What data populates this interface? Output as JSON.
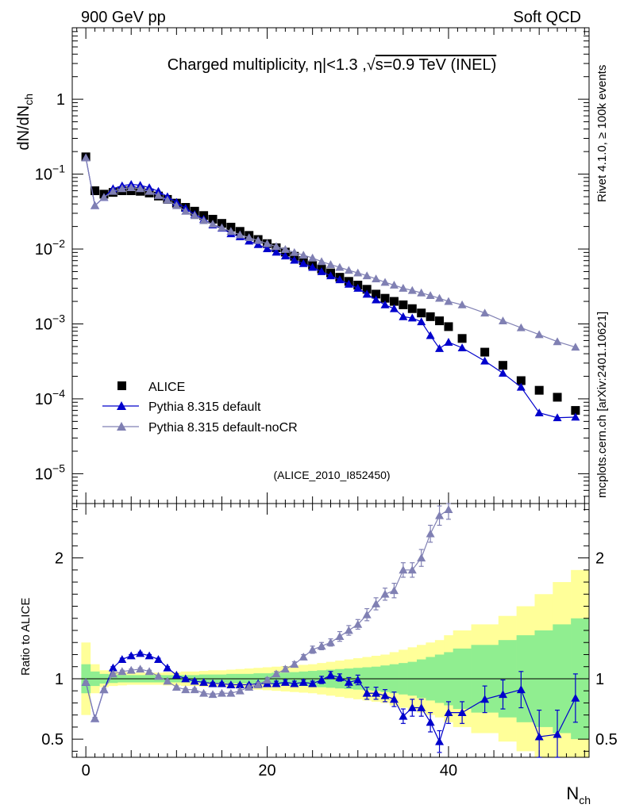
{
  "header": {
    "left": "900 GeV pp",
    "right": "Soft QCD"
  },
  "side": {
    "rivet": "Rivet 4.1.0, ≥ 100k events",
    "mcplots": "mcplots.cern.ch [arXiv:2401.10621]"
  },
  "colors": {
    "data": "#000000",
    "default": "#0000cc",
    "nocr": "#8080b3",
    "band_inner": "#90ee90",
    "band_outer": "#ffff99"
  },
  "chart_data": [
    {
      "type": "scatter",
      "panel": "main",
      "title_parts": [
        "Charged multiplicity, ",
        "η",
        "|<1.3 ,",
        "√",
        "s=0.9 TeV (INEL)"
      ],
      "ylabel_main": "dN/dN",
      "ylabel_sub": "ch",
      "yscale": "log",
      "ylim": [
        4e-06,
        9.0
      ],
      "xlim": [
        -1.5,
        55.5
      ],
      "ytick_labels": [
        {
          "value": 1,
          "mant": "1",
          "exp": ""
        },
        {
          "value": 0.1,
          "mant": "10",
          "exp": "−1"
        },
        {
          "value": 0.01,
          "mant": "10",
          "exp": "−2"
        },
        {
          "value": 0.001,
          "mant": "10",
          "exp": "−3"
        },
        {
          "value": 0.0001,
          "mant": "10",
          "exp": "−4"
        },
        {
          "value": 1e-05,
          "mant": "10",
          "exp": "−5"
        }
      ],
      "legend": [
        "ALICE",
        "Pythia 8.315 default",
        "Pythia 8.315 default-noCR"
      ],
      "analysis_label": "(ALICE_2010_I852450)",
      "series": [
        {
          "name": "ALICE",
          "style": "square",
          "x": [
            0,
            1,
            2,
            3,
            4,
            5,
            6,
            7,
            8,
            9,
            10,
            11,
            12,
            13,
            14,
            15,
            16,
            17,
            18,
            19,
            20,
            21,
            22,
            23,
            24,
            25,
            26,
            27,
            28,
            29,
            30,
            31,
            32,
            33,
            34,
            35,
            36,
            37,
            38,
            39,
            40,
            41.5,
            44,
            46,
            48,
            50,
            52,
            54
          ],
          "y": [
            0.17,
            0.06,
            0.054,
            0.057,
            0.06,
            0.06,
            0.059,
            0.056,
            0.051,
            0.046,
            0.041,
            0.036,
            0.032,
            0.028,
            0.025,
            0.022,
            0.0196,
            0.0172,
            0.0152,
            0.0134,
            0.0118,
            0.0104,
            0.0091,
            0.008,
            0.007,
            0.0061,
            0.0054,
            0.0048,
            0.0042,
            0.0037,
            0.0033,
            0.0029,
            0.0025,
            0.0022,
            0.002,
            0.0018,
            0.0016,
            0.0014,
            0.00125,
            0.0011,
            0.00092,
            0.00064,
            0.00042,
            0.00028,
            0.000175,
            0.00013,
            0.000105,
            7e-05
          ]
        },
        {
          "name": "Pythia 8.315 default",
          "style": "triangle",
          "x": [
            0,
            1,
            2,
            3,
            4,
            5,
            6,
            7,
            8,
            9,
            10,
            11,
            12,
            13,
            14,
            15,
            16,
            17,
            18,
            19,
            20,
            21,
            22,
            23,
            24,
            25,
            26,
            27,
            28,
            29,
            30,
            31,
            32,
            33,
            34,
            35,
            36,
            37,
            38,
            39,
            40,
            41.5,
            44,
            46,
            48,
            50,
            52,
            54
          ],
          "y": [
            0.165,
            0.038,
            0.049,
            0.064,
            0.07,
            0.073,
            0.071,
            0.066,
            0.059,
            0.05,
            0.042,
            0.035,
            0.029,
            0.025,
            0.021,
            0.019,
            0.016,
            0.0146,
            0.0128,
            0.0115,
            0.0101,
            0.0091,
            0.0081,
            0.0071,
            0.0064,
            0.0057,
            0.005,
            0.0044,
            0.0039,
            0.0034,
            0.003,
            0.0025,
            0.0021,
            0.0018,
            0.0016,
            0.00125,
            0.0012,
            0.00107,
            0.0007,
            0.00047,
            0.00057,
            0.00048,
            0.00032,
            0.00022,
            0.000143,
            6.5e-05,
            5.6e-05,
            5.7e-05
          ]
        },
        {
          "name": "Pythia 8.315 default-noCR",
          "style": "triangle",
          "x": [
            0,
            1,
            2,
            3,
            4,
            5,
            6,
            7,
            8,
            9,
            10,
            11,
            12,
            13,
            14,
            15,
            16,
            17,
            18,
            19,
            20,
            21,
            22,
            23,
            24,
            25,
            26,
            27,
            28,
            29,
            30,
            31,
            32,
            33,
            34,
            35,
            36,
            37,
            38,
            39,
            40,
            41.5,
            44,
            46,
            48,
            50,
            52,
            54
          ],
          "y": [
            0.165,
            0.038,
            0.049,
            0.059,
            0.064,
            0.066,
            0.064,
            0.059,
            0.052,
            0.045,
            0.038,
            0.032,
            0.028,
            0.024,
            0.0215,
            0.0192,
            0.0172,
            0.0155,
            0.0142,
            0.013,
            0.0118,
            0.0108,
            0.0099,
            0.009,
            0.0083,
            0.0076,
            0.0068,
            0.0062,
            0.0057,
            0.0052,
            0.0048,
            0.0044,
            0.004,
            0.0036,
            0.0033,
            0.003,
            0.0028,
            0.0026,
            0.0024,
            0.0022,
            0.002,
            0.0018,
            0.0014,
            0.0011,
            0.00089,
            0.00072,
            0.00058,
            0.00049
          ]
        }
      ]
    },
    {
      "type": "scatter",
      "panel": "ratio",
      "ylabel": "Ratio to ALICE",
      "xlabel_main": "N",
      "xlabel_sub": "ch",
      "ylim": [
        0.35,
        2.45
      ],
      "xlim": [
        -1.5,
        55.5
      ],
      "xticks": [
        0,
        20,
        40
      ],
      "yticks": [
        0.5,
        1,
        2
      ],
      "band": {
        "edges": [
          -0.5,
          0.5,
          1.5,
          2.5,
          3.5,
          4.5,
          5.5,
          6.5,
          7.5,
          8.5,
          9.5,
          10.5,
          11.5,
          12.5,
          13.5,
          14.5,
          15.5,
          16.5,
          17.5,
          18.5,
          19.5,
          20.5,
          21.5,
          22.5,
          23.5,
          24.5,
          25.5,
          26.5,
          27.5,
          28.5,
          29.5,
          30.5,
          31.5,
          32.5,
          33.5,
          34.5,
          35.5,
          36.5,
          37.5,
          38.5,
          39.5,
          40.5,
          42.5,
          45.5,
          47.5,
          49.5,
          51.5,
          53.5,
          55.5
        ],
        "inner": [
          0.12,
          0.06,
          0.04,
          0.035,
          0.03,
          0.03,
          0.03,
          0.03,
          0.03,
          0.03,
          0.03,
          0.03,
          0.03,
          0.035,
          0.035,
          0.035,
          0.04,
          0.04,
          0.04,
          0.045,
          0.045,
          0.05,
          0.05,
          0.055,
          0.06,
          0.065,
          0.07,
          0.075,
          0.08,
          0.085,
          0.09,
          0.095,
          0.1,
          0.11,
          0.12,
          0.13,
          0.14,
          0.16,
          0.18,
          0.2,
          0.22,
          0.25,
          0.28,
          0.32,
          0.36,
          0.4,
          0.45,
          0.5
        ],
        "outer": [
          0.3,
          0.12,
          0.07,
          0.06,
          0.055,
          0.05,
          0.05,
          0.05,
          0.05,
          0.055,
          0.055,
          0.06,
          0.06,
          0.065,
          0.07,
          0.07,
          0.075,
          0.08,
          0.085,
          0.09,
          0.095,
          0.1,
          0.105,
          0.11,
          0.115,
          0.12,
          0.13,
          0.14,
          0.15,
          0.16,
          0.17,
          0.18,
          0.19,
          0.2,
          0.22,
          0.24,
          0.26,
          0.28,
          0.3,
          0.32,
          0.36,
          0.4,
          0.45,
          0.52,
          0.6,
          0.7,
          0.8,
          0.9
        ]
      },
      "series": [
        {
          "name": "Pythia 8.315 default",
          "x": [
            0,
            1,
            2,
            3,
            4,
            5,
            6,
            7,
            8,
            9,
            10,
            11,
            12,
            13,
            14,
            15,
            16,
            17,
            18,
            19,
            20,
            21,
            22,
            23,
            24,
            25,
            26,
            27,
            28,
            29,
            30,
            31,
            32,
            33,
            34,
            35,
            36,
            37,
            38,
            39,
            40,
            41.5,
            44,
            46,
            48,
            50,
            52,
            54
          ],
          "y": [
            0.97,
            0.67,
            0.91,
            1.09,
            1.16,
            1.19,
            1.21,
            1.19,
            1.16,
            1.09,
            1.03,
            1.0,
            0.98,
            0.97,
            0.96,
            0.96,
            0.95,
            0.95,
            0.95,
            0.96,
            0.96,
            0.96,
            0.97,
            0.96,
            0.97,
            0.96,
            0.99,
            1.03,
            1.01,
            0.97,
            0.99,
            0.88,
            0.88,
            0.86,
            0.83,
            0.69,
            0.76,
            0.76,
            0.64,
            0.48,
            0.72,
            0.72,
            0.83,
            0.87,
            0.91,
            0.52,
            0.54,
            0.84
          ],
          "err": [
            0.01,
            0.01,
            0.01,
            0.01,
            0.01,
            0.01,
            0.01,
            0.01,
            0.01,
            0.01,
            0.01,
            0.01,
            0.01,
            0.01,
            0.01,
            0.01,
            0.01,
            0.01,
            0.01,
            0.01,
            0.01,
            0.02,
            0.02,
            0.02,
            0.02,
            0.02,
            0.03,
            0.03,
            0.03,
            0.04,
            0.04,
            0.05,
            0.05,
            0.05,
            0.06,
            0.06,
            0.07,
            0.07,
            0.08,
            0.09,
            0.09,
            0.09,
            0.11,
            0.12,
            0.15,
            0.22,
            0.2,
            0.2
          ]
        },
        {
          "name": "Pythia 8.315 default-noCR",
          "x": [
            0,
            1,
            2,
            3,
            4,
            5,
            6,
            7,
            8,
            9,
            10,
            11,
            12,
            13,
            14,
            15,
            16,
            17,
            18,
            19,
            20,
            21,
            22,
            23,
            24,
            25,
            26,
            27,
            28,
            29,
            30,
            31,
            32,
            33,
            34,
            35,
            36,
            37,
            38,
            39,
            40
          ],
          "y": [
            0.97,
            0.67,
            0.91,
            1.04,
            1.06,
            1.07,
            1.08,
            1.06,
            1.02,
            0.98,
            0.93,
            0.91,
            0.91,
            0.88,
            0.87,
            0.88,
            0.88,
            0.9,
            0.93,
            0.95,
            0.99,
            1.04,
            1.08,
            1.12,
            1.18,
            1.24,
            1.27,
            1.3,
            1.35,
            1.4,
            1.45,
            1.53,
            1.62,
            1.7,
            1.73,
            1.9,
            1.9,
            2.0,
            2.2,
            2.35,
            2.4
          ],
          "err": [
            0.01,
            0.01,
            0.01,
            0.01,
            0.01,
            0.01,
            0.01,
            0.01,
            0.01,
            0.01,
            0.01,
            0.01,
            0.01,
            0.01,
            0.01,
            0.01,
            0.01,
            0.01,
            0.01,
            0.02,
            0.02,
            0.02,
            0.02,
            0.02,
            0.02,
            0.03,
            0.03,
            0.03,
            0.04,
            0.04,
            0.04,
            0.05,
            0.05,
            0.05,
            0.06,
            0.06,
            0.06,
            0.07,
            0.07,
            0.08,
            0.08
          ]
        }
      ]
    }
  ]
}
